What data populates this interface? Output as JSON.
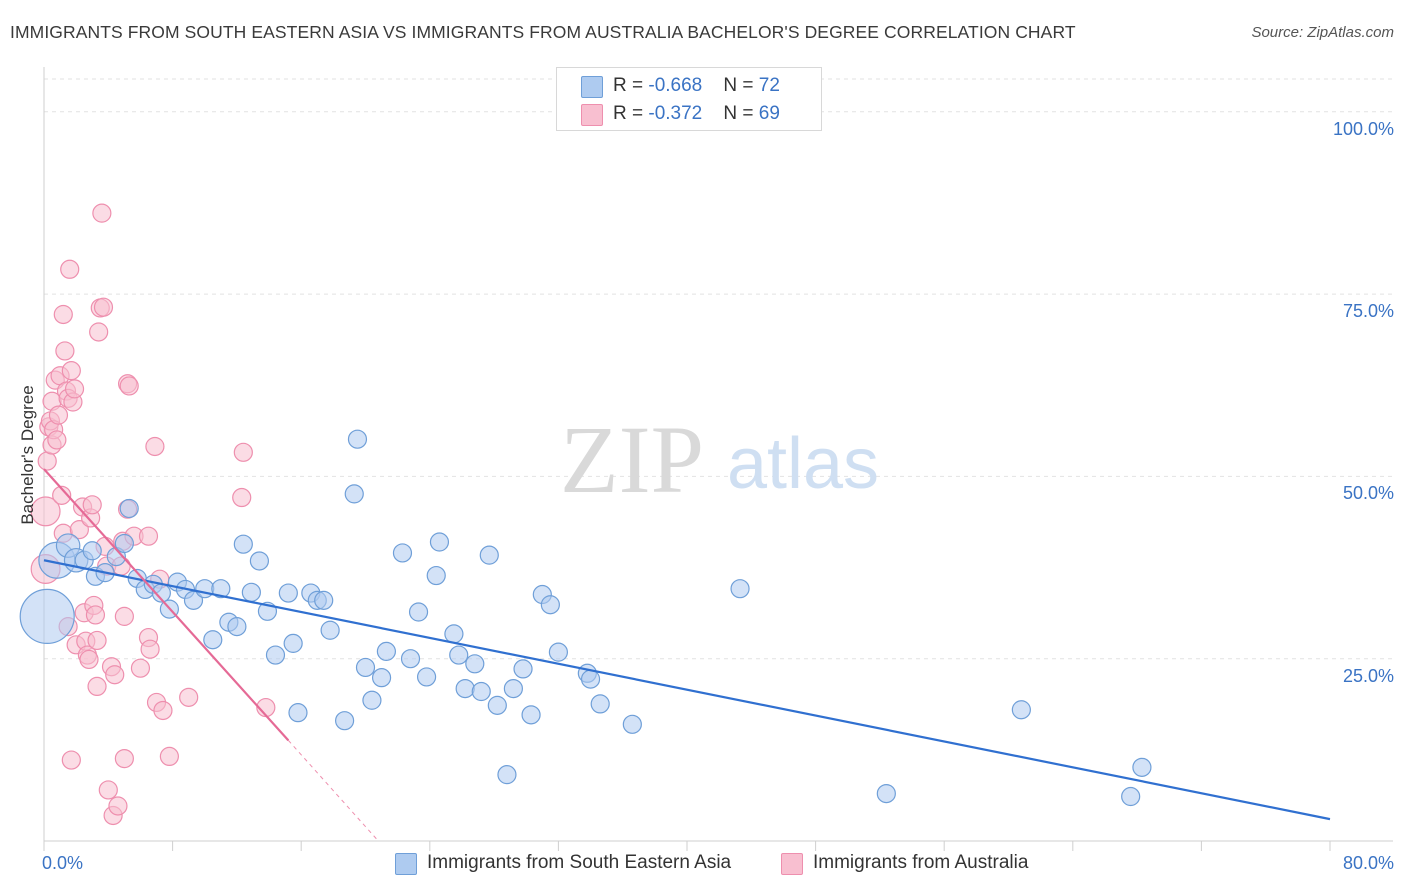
{
  "header": {
    "title": "IMMIGRANTS FROM SOUTH EASTERN ASIA VS IMMIGRANTS FROM AUSTRALIA BACHELOR'S DEGREE CORRELATION CHART",
    "source": "Source: ZipAtlas.com"
  },
  "watermark": {
    "zip": "ZIP",
    "atlas": "atlas"
  },
  "legend": {
    "rows": [
      {
        "r_label": "R = ",
        "r_value": "-0.668",
        "n_label": "N = ",
        "n_value": "72"
      },
      {
        "r_label": "R = ",
        "r_value": "-0.372",
        "n_label": "N = ",
        "n_value": "69"
      }
    ]
  },
  "colors": {
    "blue_fill": "#aecbf0",
    "blue_stroke": "#6f9fd8",
    "blue_line": "#3070d0",
    "pink_fill": "#f8bfd0",
    "pink_stroke": "#ee8fae",
    "pink_line": "#e56a96",
    "accent_text": "#3a73c4",
    "grid": "#e2e2e2"
  },
  "chart_data": {
    "type": "scatter",
    "title": "IMMIGRANTS FROM SOUTH EASTERN ASIA VS IMMIGRANTS FROM AUSTRALIA BACHELOR'S DEGREE CORRELATION CHART",
    "xlabel": "",
    "ylabel": "Bachelor's Degree",
    "xlim": [
      0,
      80
    ],
    "ylim": [
      0,
      100
    ],
    "x_tick_labels": [
      "0.0%",
      "80.0%"
    ],
    "y_tick_labels": [
      "25.0%",
      "50.0%",
      "75.0%",
      "100.0%"
    ],
    "y_ticks": [
      25,
      50,
      75,
      100
    ],
    "grid": true,
    "legend_position": "top-center",
    "series": [
      {
        "name": "Immigrants from South Eastern Asia",
        "color": "#aecbf0",
        "trend": {
          "x": [
            0,
            80
          ],
          "y": [
            38.5,
            3.0
          ]
        },
        "points": [
          [
            0.2,
            30.8,
            3
          ],
          [
            0.8,
            38.5,
            2
          ],
          [
            1.5,
            40.5,
            1.3
          ],
          [
            2.0,
            38.5,
            1.3
          ],
          [
            2.5,
            38.5,
            1
          ],
          [
            3.0,
            39.8,
            1
          ],
          [
            3.2,
            36.3,
            1
          ],
          [
            3.8,
            36.8,
            1
          ],
          [
            4.5,
            39.0,
            1
          ],
          [
            5.3,
            45.6,
            1
          ],
          [
            5.8,
            36.0,
            1
          ],
          [
            6.3,
            34.5,
            1
          ],
          [
            6.8,
            35.2,
            1
          ],
          [
            7.3,
            34.0,
            1
          ],
          [
            7.8,
            31.8,
            1
          ],
          [
            8.3,
            35.5,
            1
          ],
          [
            8.8,
            34.5,
            1
          ],
          [
            9.3,
            33.0,
            1
          ],
          [
            10.0,
            34.6,
            1
          ],
          [
            10.5,
            27.6,
            1
          ],
          [
            11.0,
            34.6,
            1
          ],
          [
            11.5,
            30.0,
            1
          ],
          [
            12.0,
            29.4,
            1
          ],
          [
            12.4,
            40.7,
            1
          ],
          [
            12.9,
            34.1,
            1
          ],
          [
            13.4,
            38.4,
            1
          ],
          [
            13.9,
            31.5,
            1
          ],
          [
            14.4,
            25.5,
            1
          ],
          [
            15.2,
            34.0,
            1
          ],
          [
            15.5,
            27.1,
            1
          ],
          [
            15.8,
            17.6,
            1
          ],
          [
            16.6,
            34.0,
            1
          ],
          [
            17.0,
            33.0,
            1
          ],
          [
            17.4,
            33.0,
            1
          ],
          [
            17.8,
            28.9,
            1
          ],
          [
            18.7,
            16.5,
            1
          ],
          [
            19.3,
            47.6,
            1
          ],
          [
            19.5,
            55.1,
            1
          ],
          [
            20.0,
            23.8,
            1
          ],
          [
            20.4,
            19.3,
            1
          ],
          [
            21.0,
            22.4,
            1
          ],
          [
            21.3,
            26.0,
            1
          ],
          [
            22.3,
            39.5,
            1
          ],
          [
            22.8,
            25.0,
            1
          ],
          [
            23.3,
            31.4,
            1
          ],
          [
            23.8,
            22.5,
            1
          ],
          [
            24.4,
            36.4,
            1
          ],
          [
            24.6,
            41.0,
            1
          ],
          [
            25.5,
            28.4,
            1
          ],
          [
            25.8,
            25.5,
            1
          ],
          [
            26.2,
            20.9,
            1
          ],
          [
            26.8,
            24.3,
            1
          ],
          [
            27.2,
            20.5,
            1
          ],
          [
            27.7,
            39.2,
            1
          ],
          [
            28.2,
            18.6,
            1
          ],
          [
            28.8,
            9.1,
            1
          ],
          [
            29.2,
            20.9,
            1
          ],
          [
            29.8,
            23.6,
            1
          ],
          [
            30.3,
            17.3,
            1
          ],
          [
            31.0,
            33.8,
            1
          ],
          [
            31.5,
            32.4,
            1
          ],
          [
            32.0,
            25.9,
            1
          ],
          [
            33.8,
            23.0,
            1
          ],
          [
            34.0,
            22.2,
            1
          ],
          [
            34.6,
            18.8,
            1
          ],
          [
            36.6,
            16.0,
            1
          ],
          [
            43.3,
            34.6,
            1
          ],
          [
            52.4,
            6.5,
            1
          ],
          [
            60.8,
            18.0,
            1
          ],
          [
            67.6,
            6.1,
            1
          ],
          [
            68.3,
            10.1,
            1
          ],
          [
            5.0,
            40.8,
            1
          ]
        ]
      },
      {
        "name": "Immigrants from Australia",
        "color": "#f8bfd0",
        "trend": {
          "x": [
            0,
            15.2
          ],
          "y": [
            51.0,
            13.8
          ]
        },
        "trend_dashed": {
          "x": [
            15.2,
            20.8
          ],
          "y": [
            13.8,
            0
          ]
        },
        "points": [
          [
            0.1,
            45.2,
            1.6
          ],
          [
            0.1,
            37.3,
            1.6
          ],
          [
            0.2,
            52.1,
            1
          ],
          [
            0.3,
            56.8,
            1
          ],
          [
            0.4,
            57.6,
            1
          ],
          [
            0.5,
            54.3,
            1
          ],
          [
            0.5,
            60.3,
            1
          ],
          [
            0.6,
            56.4,
            1
          ],
          [
            0.7,
            63.2,
            1
          ],
          [
            0.8,
            55.0,
            1
          ],
          [
            0.9,
            58.4,
            1
          ],
          [
            1.0,
            63.8,
            1
          ],
          [
            1.1,
            47.4,
            1
          ],
          [
            1.2,
            42.2,
            1
          ],
          [
            1.2,
            72.2,
            1
          ],
          [
            1.3,
            67.2,
            1
          ],
          [
            1.4,
            61.7,
            1
          ],
          [
            1.5,
            60.7,
            1
          ],
          [
            1.5,
            29.4,
            1
          ],
          [
            1.6,
            78.4,
            1
          ],
          [
            1.7,
            11.1,
            1
          ],
          [
            1.7,
            64.5,
            1
          ],
          [
            1.8,
            60.2,
            1
          ],
          [
            1.9,
            62.0,
            1
          ],
          [
            2.0,
            26.9,
            1
          ],
          [
            2.2,
            42.7,
            1
          ],
          [
            2.4,
            45.8,
            1
          ],
          [
            2.5,
            31.3,
            1
          ],
          [
            2.6,
            27.4,
            1
          ],
          [
            2.7,
            25.5,
            1
          ],
          [
            2.8,
            24.9,
            1
          ],
          [
            2.9,
            44.3,
            1
          ],
          [
            3.0,
            46.1,
            1
          ],
          [
            3.1,
            32.3,
            1
          ],
          [
            3.2,
            31.0,
            1
          ],
          [
            3.3,
            27.5,
            1
          ],
          [
            3.3,
            21.2,
            1
          ],
          [
            3.4,
            69.8,
            1
          ],
          [
            3.5,
            73.1,
            1
          ],
          [
            3.6,
            86.1,
            1
          ],
          [
            3.7,
            73.2,
            1
          ],
          [
            3.8,
            40.4,
            1
          ],
          [
            3.9,
            37.7,
            1
          ],
          [
            4.0,
            7.0,
            1
          ],
          [
            4.2,
            23.9,
            1
          ],
          [
            4.3,
            3.5,
            1
          ],
          [
            4.4,
            22.8,
            1
          ],
          [
            4.6,
            4.8,
            1
          ],
          [
            4.8,
            37.7,
            1
          ],
          [
            4.9,
            41.1,
            1
          ],
          [
            5.0,
            30.8,
            1
          ],
          [
            5.0,
            11.3,
            1
          ],
          [
            5.2,
            45.5,
            1
          ],
          [
            5.2,
            62.7,
            1
          ],
          [
            5.3,
            62.4,
            1
          ],
          [
            5.6,
            41.8,
            1
          ],
          [
            6.0,
            23.7,
            1
          ],
          [
            6.5,
            41.8,
            1
          ],
          [
            6.5,
            27.9,
            1
          ],
          [
            6.6,
            26.3,
            1
          ],
          [
            6.9,
            54.1,
            1
          ],
          [
            7.0,
            19.0,
            1
          ],
          [
            7.2,
            35.9,
            1
          ],
          [
            7.4,
            17.9,
            1
          ],
          [
            7.8,
            11.6,
            1
          ],
          [
            9.0,
            19.7,
            1
          ],
          [
            12.3,
            47.1,
            1
          ],
          [
            12.4,
            53.3,
            1
          ],
          [
            13.8,
            18.3,
            1
          ]
        ]
      }
    ]
  }
}
